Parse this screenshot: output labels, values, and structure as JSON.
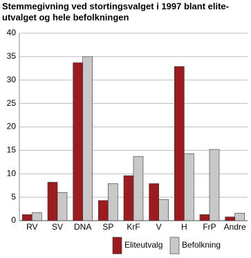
{
  "chart_data": {
    "type": "bar",
    "title": [
      "Stemmegivning ved stortingsvalget i 1997 blant elite-",
      "utvalget og hele befolkningen"
    ],
    "categories": [
      "RV",
      "SV",
      "DNA",
      "SP",
      "KrF",
      "V",
      "H",
      "FrP",
      "Andre"
    ],
    "series": [
      {
        "name": "Eliteutvalg",
        "color": "#9b1b1e",
        "values": [
          1.3,
          8.2,
          33.7,
          4.3,
          9.6,
          7.9,
          32.9,
          1.3,
          0.8
        ]
      },
      {
        "name": "Befolkning",
        "color": "#c8c8c8",
        "values": [
          1.7,
          6.0,
          35.0,
          7.9,
          13.7,
          4.5,
          14.3,
          15.2,
          1.6
        ]
      }
    ],
    "ylim": [
      0,
      40
    ],
    "yticks": [
      0,
      5,
      10,
      15,
      20,
      25,
      30,
      35,
      40
    ],
    "grid": true,
    "legend": "bottom"
  }
}
